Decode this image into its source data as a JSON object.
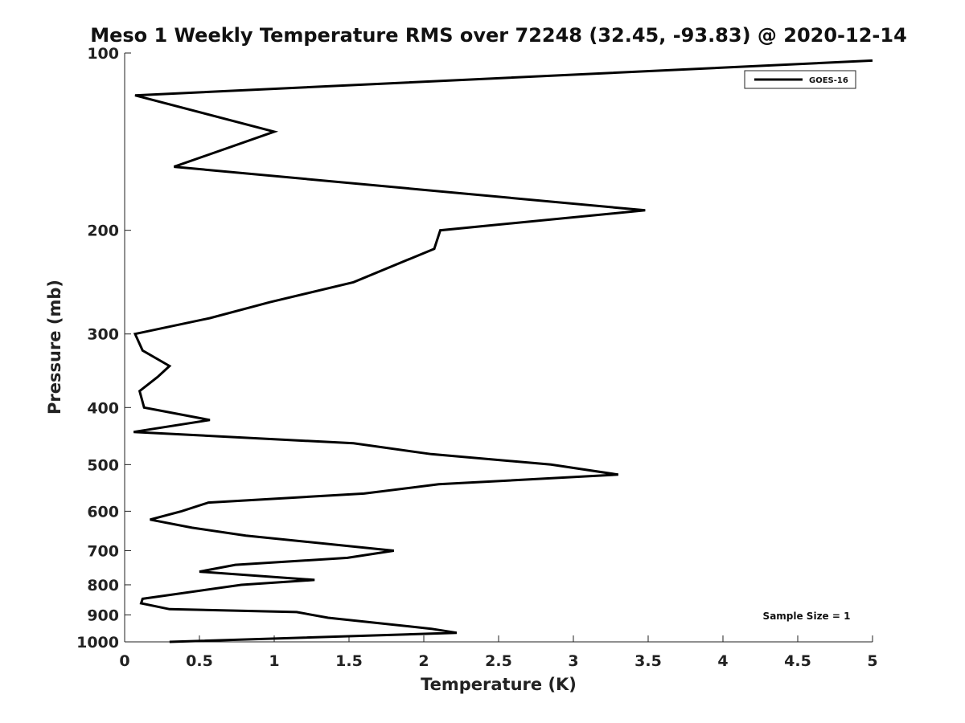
{
  "chart_data": {
    "type": "line",
    "title": "Meso 1 Weekly Temperature RMS over 72248 (32.45, -93.83) @ 2020-12-14",
    "xlabel": "Temperature (K)",
    "ylabel": "Pressure (mb)",
    "xlim": [
      0,
      5
    ],
    "ylim": [
      100,
      1000
    ],
    "y_scale": "log",
    "y_reversed": true,
    "x_ticks": [
      "0",
      "0.5",
      "1",
      "1.5",
      "2",
      "2.5",
      "3",
      "3.5",
      "4",
      "4.5",
      "5"
    ],
    "y_ticks": [
      "100",
      "200",
      "300",
      "400",
      "500",
      "600",
      "700",
      "800",
      "900",
      "1000"
    ],
    "grid": false,
    "legend_position": "top-right",
    "annotation": "Sample Size = 1",
    "series": [
      {
        "name": "GOES-16",
        "color": "#000000",
        "points": [
          [
            5.0,
            103
          ],
          [
            0.07,
            118
          ],
          [
            1.0,
            136
          ],
          [
            0.33,
            156
          ],
          [
            3.48,
            185
          ],
          [
            2.11,
            200
          ],
          [
            2.07,
            215
          ],
          [
            1.53,
            245
          ],
          [
            0.97,
            265
          ],
          [
            0.57,
            282
          ],
          [
            0.07,
            300
          ],
          [
            0.12,
            320
          ],
          [
            0.3,
            340
          ],
          [
            0.22,
            355
          ],
          [
            0.1,
            375
          ],
          [
            0.13,
            400
          ],
          [
            0.57,
            420
          ],
          [
            0.06,
            440
          ],
          [
            1.53,
            460
          ],
          [
            2.05,
            480
          ],
          [
            2.85,
            500
          ],
          [
            3.3,
            520
          ],
          [
            2.1,
            540
          ],
          [
            1.6,
            560
          ],
          [
            0.56,
            580
          ],
          [
            0.38,
            600
          ],
          [
            0.17,
            620
          ],
          [
            0.45,
            640
          ],
          [
            0.81,
            660
          ],
          [
            1.8,
            700
          ],
          [
            1.49,
            720
          ],
          [
            0.74,
            740
          ],
          [
            0.5,
            760
          ],
          [
            1.27,
            785
          ],
          [
            0.78,
            800
          ],
          [
            0.12,
            845
          ],
          [
            0.11,
            860
          ],
          [
            0.3,
            880
          ],
          [
            1.15,
            890
          ],
          [
            1.36,
            910
          ],
          [
            2.05,
            950
          ],
          [
            2.22,
            965
          ],
          [
            0.3,
            1000
          ]
        ]
      }
    ]
  }
}
